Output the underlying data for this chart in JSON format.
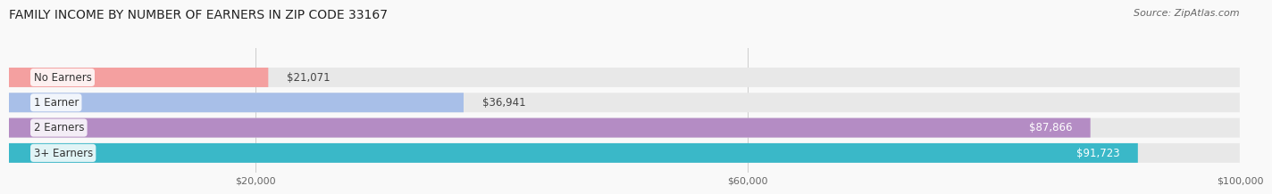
{
  "title": "FAMILY INCOME BY NUMBER OF EARNERS IN ZIP CODE 33167",
  "source": "Source: ZipAtlas.com",
  "categories": [
    "No Earners",
    "1 Earner",
    "2 Earners",
    "3+ Earners"
  ],
  "values": [
    21071,
    36941,
    87866,
    91723
  ],
  "bar_colors": [
    "#f4a0a0",
    "#a8bfe8",
    "#b48cc4",
    "#3ab8c8"
  ],
  "label_colors": [
    "#333333",
    "#333333",
    "#ffffff",
    "#ffffff"
  ],
  "bar_bg_color": "#f0f0f0",
  "background_color": "#f9f9f9",
  "xmax": 100000,
  "xticks": [
    20000,
    60000,
    100000
  ],
  "xtick_labels": [
    "$20,000",
    "$60,000",
    "$100,000"
  ],
  "label_fontsize": 8.5,
  "title_fontsize": 10,
  "source_fontsize": 8
}
